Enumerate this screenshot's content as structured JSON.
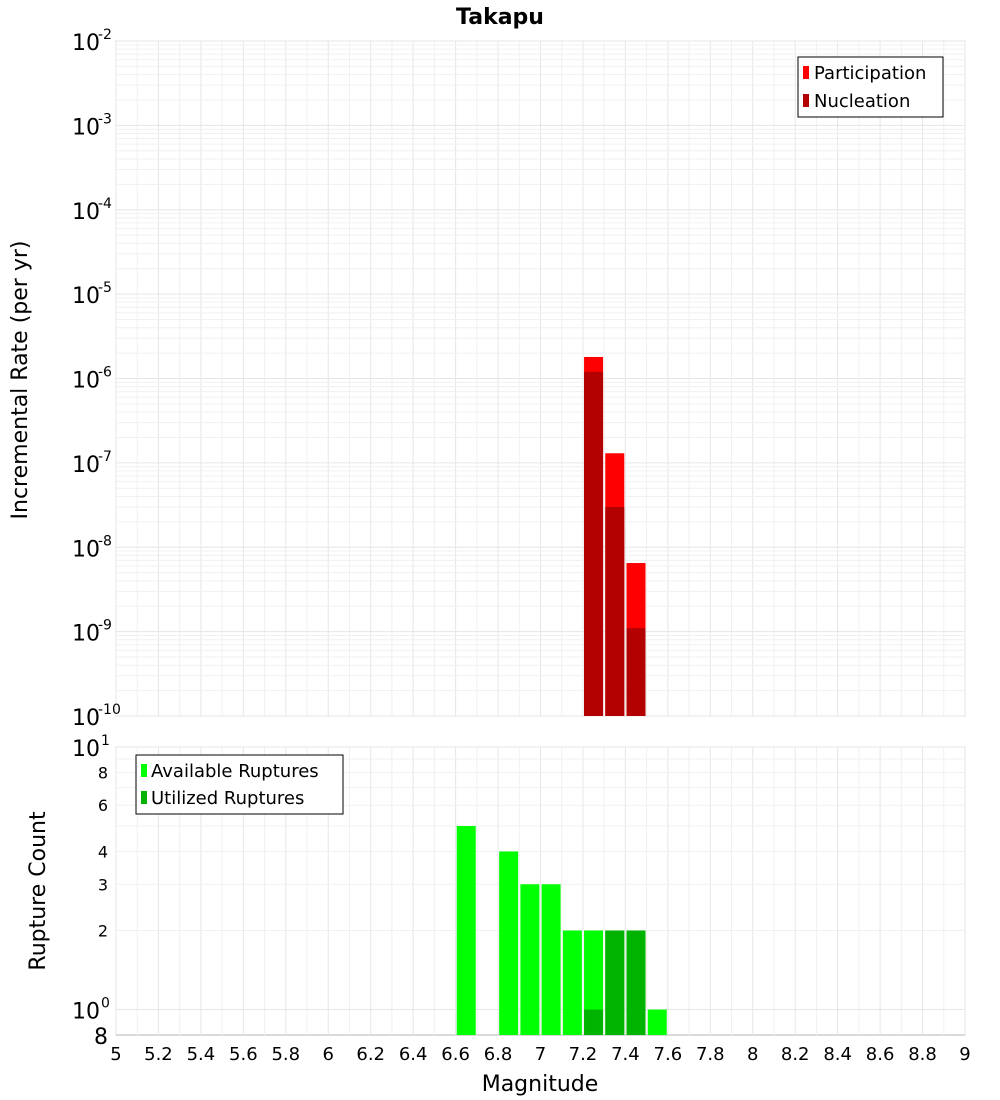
{
  "chart_data": [
    {
      "type": "bar",
      "title": "Takapu",
      "xlabel": "",
      "ylabel": "Incremental Rate (per yr)",
      "yscale": "log",
      "ylim": [
        1e-10,
        0.01
      ],
      "xlim": [
        5,
        9
      ],
      "grid": true,
      "legend_position": "top-right",
      "y_ticks": [
        {
          "base": "10",
          "exp": "-2",
          "value": 0.01
        },
        {
          "base": "10",
          "exp": "-3",
          "value": 0.001
        },
        {
          "base": "10",
          "exp": "-4",
          "value": 0.0001
        },
        {
          "base": "10",
          "exp": "-5",
          "value": 1e-05
        },
        {
          "base": "10",
          "exp": "-6",
          "value": 1e-06
        },
        {
          "base": "10",
          "exp": "-7",
          "value": 1e-07
        },
        {
          "base": "10",
          "exp": "-8",
          "value": 1e-08
        },
        {
          "base": "10",
          "exp": "-9",
          "value": 1e-09
        },
        {
          "base": "10",
          "exp": "-10",
          "value": 1e-10
        }
      ],
      "series": [
        {
          "name": "Participation",
          "color": "#ff0000",
          "x": [
            7.25,
            7.35,
            7.45
          ],
          "values": [
            1.8e-06,
            1.3e-07,
            6.5e-09
          ]
        },
        {
          "name": "Nucleation",
          "color": "#b30000",
          "x": [
            7.25,
            7.35,
            7.45
          ],
          "values": [
            1.2e-06,
            3e-08,
            1.1e-09
          ]
        }
      ]
    },
    {
      "type": "bar",
      "xlabel": "Magnitude",
      "ylabel": "Rupture Count",
      "yscale": "log",
      "ylim": [
        0.8,
        10
      ],
      "xlim": [
        5,
        9
      ],
      "grid": true,
      "legend_position": "top-left",
      "x_ticks": [
        "5",
        "5.2",
        "5.4",
        "5.6",
        "5.8",
        "6",
        "6.2",
        "6.4",
        "6.6",
        "6.8",
        "7",
        "7.2",
        "7.4",
        "7.6",
        "7.8",
        "8",
        "8.2",
        "8.4",
        "8.6",
        "8.8",
        "9"
      ],
      "y_ticks_small": [
        {
          "label": "8",
          "value": 8
        },
        {
          "label": "6",
          "value": 6
        },
        {
          "label": "4",
          "value": 4
        },
        {
          "label": "3",
          "value": 3
        },
        {
          "label": "2",
          "value": 2
        }
      ],
      "y_ticks_big": [
        {
          "base": "10",
          "exp": "1",
          "value": 10
        },
        {
          "base": "10",
          "exp": "0",
          "value": 1
        }
      ],
      "y_bottom_label": "8",
      "series": [
        {
          "name": "Available Ruptures",
          "color": "#00ff00",
          "x": [
            6.65,
            6.85,
            6.95,
            7.05,
            7.15,
            7.25,
            7.35,
            7.45,
            7.55
          ],
          "values": [
            5,
            4,
            3,
            3,
            2,
            2,
            2,
            2,
            1
          ]
        },
        {
          "name": "Utilized Ruptures",
          "color": "#00b300",
          "x": [
            7.25,
            7.35,
            7.45
          ],
          "values": [
            1,
            2,
            2
          ]
        }
      ]
    }
  ]
}
